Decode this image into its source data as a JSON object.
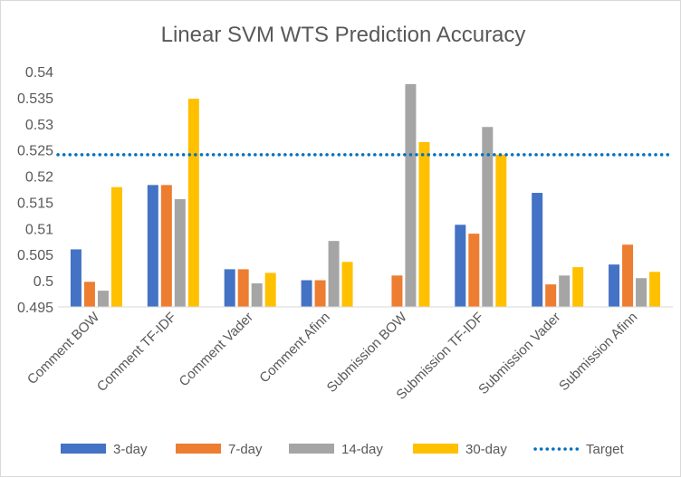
{
  "chart_data": {
    "type": "bar",
    "title": "Linear SVM WTS Prediction Accuracy",
    "categories": [
      "Comment BOW",
      "Comment TF-IDF",
      "Comment Vader",
      "Comment Afinn",
      "Submission BOW",
      "Submission TF-IDF",
      "Submission Vader",
      "Submission Afinn"
    ],
    "series": [
      {
        "name": "3-day",
        "color": "#4472c4",
        "values": [
          0.506,
          0.5183,
          0.5022,
          0.5001,
          null,
          0.5107,
          0.5168,
          0.5031
        ]
      },
      {
        "name": "7-day",
        "color": "#ed7d31",
        "values": [
          0.4998,
          0.5183,
          0.5022,
          0.5001,
          0.501,
          0.509,
          0.4993,
          0.5069
        ]
      },
      {
        "name": "14-day",
        "color": "#a5a5a5",
        "values": [
          0.4981,
          0.5156,
          0.4995,
          0.5076,
          0.5376,
          0.5294,
          0.501,
          0.5005
        ]
      },
      {
        "name": "30-day",
        "color": "#ffc000",
        "values": [
          0.5179,
          0.5348,
          0.5015,
          0.5036,
          0.5265,
          0.5241,
          0.5026,
          0.5017
        ]
      }
    ],
    "target": {
      "name": "Target",
      "value": 0.5241,
      "color": "#0070c0"
    },
    "ylim": [
      0.495,
      0.54
    ],
    "yticks": [
      "0.495",
      "0.5",
      "0.505",
      "0.51",
      "0.515",
      "0.52",
      "0.525",
      "0.53",
      "0.535",
      "0.54"
    ],
    "xlabel": "",
    "ylabel": "",
    "grid": false,
    "legend": "bottom"
  }
}
